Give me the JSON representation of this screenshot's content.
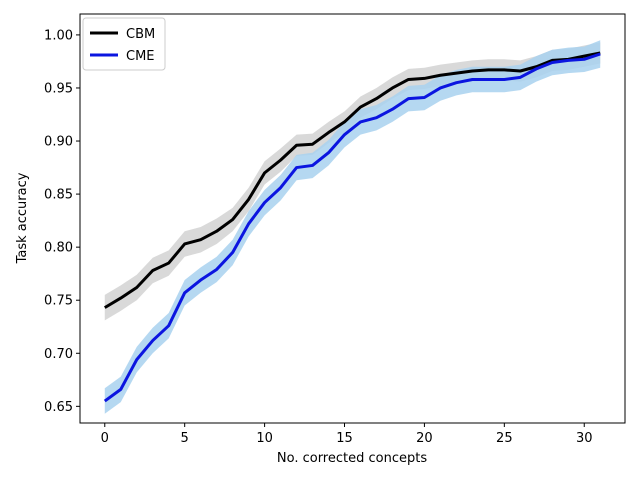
{
  "chart_data": {
    "type": "line",
    "title": "",
    "xlabel": "No. corrected concepts",
    "ylabel": "Task accuracy",
    "xlim": [
      -1.55,
      32.55
    ],
    "ylim": [
      0.6343,
      1.0197
    ],
    "xticks": [
      0,
      5,
      10,
      15,
      20,
      25,
      30
    ],
    "yticks": [
      0.65,
      0.7,
      0.75,
      0.8,
      0.85,
      0.9,
      0.95,
      1.0
    ],
    "ytick_labels": [
      "0.65",
      "0.70",
      "0.75",
      "0.80",
      "0.85",
      "0.90",
      "0.95",
      "1.00"
    ],
    "grid": false,
    "legend_position": "top-left",
    "x": [
      0,
      1,
      2,
      3,
      4,
      5,
      6,
      7,
      8,
      9,
      10,
      11,
      12,
      13,
      14,
      15,
      16,
      17,
      18,
      19,
      20,
      21,
      22,
      23,
      24,
      25,
      26,
      27,
      28,
      29,
      30,
      31
    ],
    "series": [
      {
        "name": "CBM",
        "color": "#000000",
        "band_color": "#cccccc",
        "values": [
          0.743,
          0.752,
          0.762,
          0.778,
          0.785,
          0.803,
          0.807,
          0.815,
          0.826,
          0.845,
          0.87,
          0.882,
          0.896,
          0.897,
          0.908,
          0.918,
          0.932,
          0.94,
          0.95,
          0.958,
          0.959,
          0.962,
          0.964,
          0.966,
          0.967,
          0.967,
          0.966,
          0.97,
          0.976,
          0.977,
          0.98,
          0.983
        ],
        "band_halfwidth": [
          0.012,
          0.012,
          0.012,
          0.012,
          0.012,
          0.012,
          0.012,
          0.012,
          0.011,
          0.011,
          0.011,
          0.011,
          0.01,
          0.01,
          0.01,
          0.01,
          0.01,
          0.01,
          0.01,
          0.01,
          0.01,
          0.01,
          0.01,
          0.01,
          0.01,
          0.01,
          0.01,
          0.01,
          0.01,
          0.01,
          0.01,
          0.01
        ]
      },
      {
        "name": "CME",
        "color": "#0b15e0",
        "band_color": "#a8d1ee",
        "values": [
          0.655,
          0.666,
          0.694,
          0.712,
          0.726,
          0.757,
          0.769,
          0.779,
          0.795,
          0.822,
          0.842,
          0.856,
          0.875,
          0.877,
          0.889,
          0.906,
          0.918,
          0.922,
          0.93,
          0.94,
          0.941,
          0.95,
          0.955,
          0.958,
          0.958,
          0.958,
          0.96,
          0.968,
          0.974,
          0.976,
          0.977,
          0.982
        ],
        "band_halfwidth": [
          0.012,
          0.012,
          0.012,
          0.012,
          0.012,
          0.012,
          0.012,
          0.012,
          0.012,
          0.012,
          0.012,
          0.012,
          0.012,
          0.012,
          0.012,
          0.012,
          0.012,
          0.012,
          0.012,
          0.012,
          0.012,
          0.012,
          0.012,
          0.012,
          0.012,
          0.012,
          0.012,
          0.012,
          0.012,
          0.012,
          0.012,
          0.013
        ]
      }
    ]
  }
}
